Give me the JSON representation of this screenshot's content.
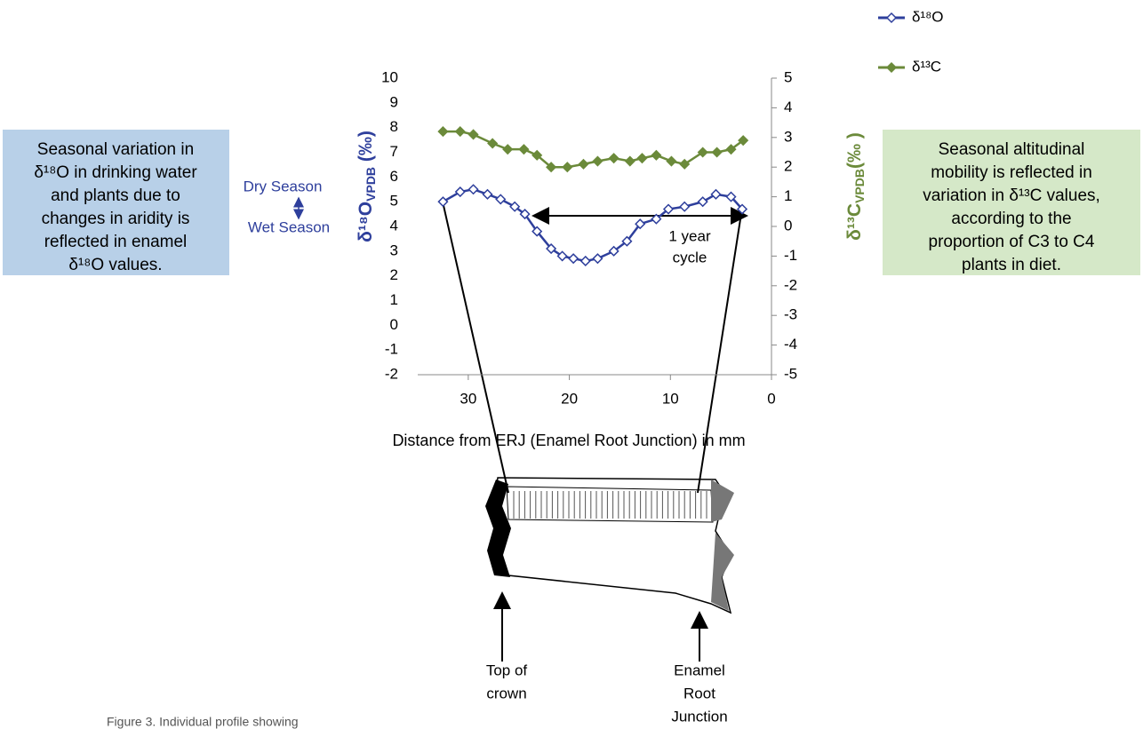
{
  "chart_data": {
    "type": "line",
    "x_title": "Distance from ERJ (Enamel Root Junction) in mm",
    "y_title": [
      "δ¹⁸O",
      "VPDB",
      " (‰)"
    ],
    "y2_title": [
      "δ¹³C",
      "VPDB",
      "(‰ )"
    ],
    "xlim": [
      35,
      0
    ],
    "xticks": [
      30,
      20,
      10,
      0
    ],
    "ylim": [
      -2,
      10
    ],
    "yticks": [
      -2,
      -1,
      0,
      1,
      2,
      3,
      4,
      5,
      6,
      7,
      8,
      9,
      10
    ],
    "y2lim": [
      -5,
      5
    ],
    "y2ticks": [
      -5,
      -4,
      -3,
      -2,
      -1,
      0,
      1,
      2,
      3,
      4,
      5
    ],
    "legend": "top-right",
    "series": [
      {
        "name": "δ¹⁸O",
        "color": "#2e3f9c",
        "marker": "open-diamond",
        "x": [
          32.5,
          30.8,
          29.5,
          28.1,
          26.8,
          25.4,
          24.4,
          23.2,
          21.8,
          20.7,
          19.6,
          18.4,
          17.2,
          15.6,
          14.3,
          13.0,
          11.4,
          10.2,
          8.6,
          6.8,
          5.5,
          4.0,
          2.9
        ],
        "values": [
          5.0,
          5.4,
          5.5,
          5.3,
          5.1,
          4.8,
          4.5,
          3.8,
          3.1,
          2.8,
          2.7,
          2.6,
          2.7,
          3.0,
          3.4,
          4.1,
          4.3,
          4.7,
          4.8,
          5.0,
          5.3,
          5.2,
          4.7
        ]
      },
      {
        "name": "δ¹³C",
        "color": "#6b8a3a",
        "marker": "filled-diamond",
        "axis": "y2",
        "x": [
          32.5,
          30.8,
          29.5,
          27.6,
          26.1,
          24.5,
          23.2,
          21.8,
          20.2,
          18.6,
          17.2,
          15.6,
          14.0,
          12.8,
          11.4,
          9.9,
          8.6,
          6.8,
          5.4,
          4.0,
          2.8
        ],
        "values": [
          3.2,
          3.2,
          3.1,
          2.8,
          2.6,
          2.6,
          2.4,
          2.0,
          2.0,
          2.1,
          2.2,
          2.3,
          2.2,
          2.3,
          2.4,
          2.2,
          2.1,
          2.5,
          2.5,
          2.6,
          2.9
        ]
      }
    ],
    "annotations": {
      "dry": "Dry Season",
      "wet": "Wet Season",
      "cycle": [
        "1 year",
        "cycle"
      ]
    }
  },
  "left_box": [
    "Seasonal variation in",
    "δ¹⁸O in drinking water",
    "and plants due to",
    "changes in aridity is",
    "reflected in enamel",
    "δ¹⁸O values."
  ],
  "right_box": [
    "Seasonal altitudinal",
    "mobility is reflected in",
    "variation in δ¹³C  values,",
    "according to the",
    "proportion of C3 to C4",
    "plants in diet."
  ],
  "tooth_labels": {
    "top": [
      "Top of",
      "crown"
    ],
    "erj": [
      "Enamel",
      "Root",
      "Junction"
    ]
  },
  "caption": "Figure 3. Individual profile showing"
}
